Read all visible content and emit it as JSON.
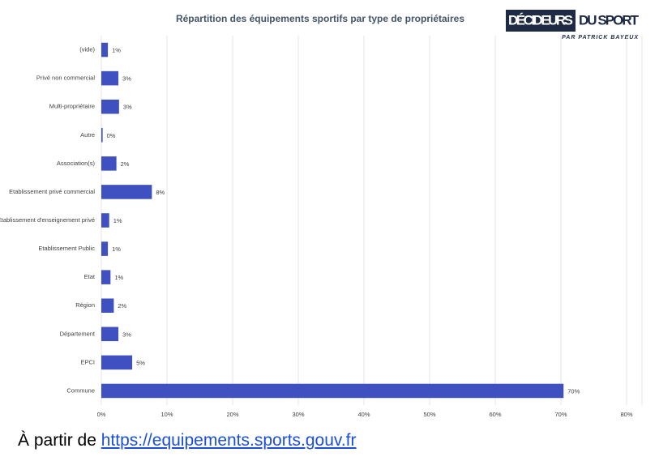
{
  "chart_data": {
    "type": "hbar",
    "title": "Répartition des équipements sportifs par type de propriétaires",
    "categories": [
      "(vide)",
      "Privé non commercial",
      "Multi-propriétaire",
      "Autre",
      "Association(s)",
      "Etablissement privé commercial",
      "Etablissement d'enseignement privé",
      "Etablissement Public",
      "Etat",
      "Région",
      "Département",
      "EPCI",
      "Commune"
    ],
    "values": [
      1.0,
      2.6,
      2.7,
      0.2,
      2.3,
      7.7,
      1.2,
      1.0,
      1.4,
      1.9,
      2.6,
      4.7,
      70.4
    ],
    "value_labels": [
      "1%",
      "3%",
      "3%",
      "0%",
      "2%",
      "8%",
      "1%",
      "1%",
      "1%",
      "2%",
      "3%",
      "5%",
      "70%"
    ],
    "color": "#3f51c0",
    "xlim": [
      0,
      80
    ],
    "xticks": [
      {
        "value": 0,
        "label": "0%"
      },
      {
        "value": 10,
        "label": "10%"
      },
      {
        "value": 20,
        "label": "20%"
      },
      {
        "value": 30,
        "label": "30%"
      },
      {
        "value": 40,
        "label": "40%"
      },
      {
        "value": 50,
        "label": "50%"
      },
      {
        "value": 60,
        "label": "60%"
      },
      {
        "value": 70,
        "label": "70%"
      },
      {
        "value": 80,
        "label": "80%"
      }
    ],
    "grid": true
  },
  "logo": {
    "brand_box": "DÉCIDEURS",
    "brand_rest": "DU SPORT",
    "byline": "PAR PATRICK BAYEUX"
  },
  "source": {
    "prefix": "À partir de",
    "link": "https://equipements.sports.gouv.fr"
  }
}
